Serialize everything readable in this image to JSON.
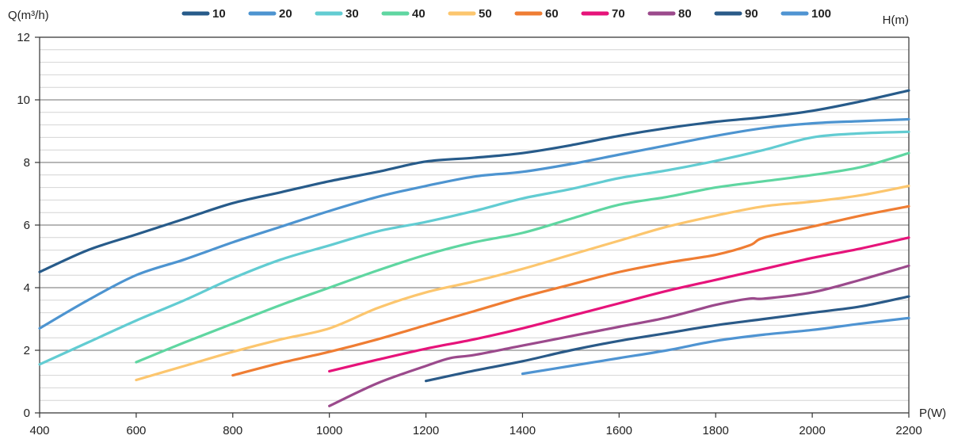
{
  "chart_data": {
    "type": "line",
    "ylabel": "Q(m³/h)",
    "xlabel": "P(W)",
    "right_label": "H(m)",
    "xlim": [
      400,
      2200
    ],
    "ylim": [
      0,
      12
    ],
    "x_ticks": [
      "400",
      "600",
      "800",
      "1000",
      "1200",
      "1400",
      "1600",
      "1800",
      "2000",
      "2200"
    ],
    "y_ticks": [
      "0",
      "2",
      "4",
      "6",
      "8",
      "10",
      "12"
    ],
    "grid": true,
    "legend_position": "top",
    "series": [
      {
        "name": "10",
        "color": "#275b8a",
        "points": [
          [
            400,
            4.5
          ],
          [
            500,
            5.2
          ],
          [
            600,
            5.7
          ],
          [
            700,
            6.2
          ],
          [
            800,
            6.7
          ],
          [
            900,
            7.05
          ],
          [
            1000,
            7.4
          ],
          [
            1100,
            7.7
          ],
          [
            1200,
            8.03
          ],
          [
            1300,
            8.15
          ],
          [
            1400,
            8.3
          ],
          [
            1500,
            8.55
          ],
          [
            1600,
            8.85
          ],
          [
            1700,
            9.1
          ],
          [
            1800,
            9.3
          ],
          [
            1900,
            9.45
          ],
          [
            2000,
            9.65
          ],
          [
            2100,
            9.95
          ],
          [
            2200,
            10.3
          ]
        ]
      },
      {
        "name": "20",
        "color": "#4d94d0",
        "points": [
          [
            400,
            2.7
          ],
          [
            500,
            3.6
          ],
          [
            600,
            4.4
          ],
          [
            700,
            4.9
          ],
          [
            800,
            5.45
          ],
          [
            900,
            5.95
          ],
          [
            1000,
            6.45
          ],
          [
            1100,
            6.9
          ],
          [
            1200,
            7.25
          ],
          [
            1300,
            7.55
          ],
          [
            1400,
            7.7
          ],
          [
            1500,
            7.95
          ],
          [
            1600,
            8.25
          ],
          [
            1700,
            8.55
          ],
          [
            1800,
            8.85
          ],
          [
            1900,
            9.1
          ],
          [
            2000,
            9.25
          ],
          [
            2100,
            9.32
          ],
          [
            2200,
            9.38
          ]
        ]
      },
      {
        "name": "30",
        "color": "#62ccd2",
        "points": [
          [
            400,
            1.55
          ],
          [
            500,
            2.25
          ],
          [
            600,
            2.95
          ],
          [
            700,
            3.6
          ],
          [
            800,
            4.3
          ],
          [
            900,
            4.9
          ],
          [
            1000,
            5.35
          ],
          [
            1100,
            5.8
          ],
          [
            1200,
            6.1
          ],
          [
            1300,
            6.45
          ],
          [
            1400,
            6.85
          ],
          [
            1500,
            7.15
          ],
          [
            1600,
            7.5
          ],
          [
            1700,
            7.75
          ],
          [
            1800,
            8.05
          ],
          [
            1900,
            8.4
          ],
          [
            2000,
            8.8
          ],
          [
            2100,
            8.93
          ],
          [
            2200,
            8.98
          ]
        ]
      },
      {
        "name": "40",
        "color": "#5fd6a1",
        "points": [
          [
            600,
            1.62
          ],
          [
            700,
            2.25
          ],
          [
            800,
            2.85
          ],
          [
            900,
            3.45
          ],
          [
            1000,
            4.0
          ],
          [
            1100,
            4.55
          ],
          [
            1200,
            5.05
          ],
          [
            1300,
            5.45
          ],
          [
            1400,
            5.75
          ],
          [
            1500,
            6.2
          ],
          [
            1600,
            6.65
          ],
          [
            1700,
            6.9
          ],
          [
            1800,
            7.2
          ],
          [
            1900,
            7.4
          ],
          [
            2000,
            7.6
          ],
          [
            2100,
            7.85
          ],
          [
            2200,
            8.3
          ]
        ]
      },
      {
        "name": "50",
        "color": "#fcc66e",
        "points": [
          [
            600,
            1.05
          ],
          [
            700,
            1.5
          ],
          [
            800,
            1.95
          ],
          [
            900,
            2.35
          ],
          [
            1000,
            2.7
          ],
          [
            1100,
            3.35
          ],
          [
            1200,
            3.85
          ],
          [
            1300,
            4.2
          ],
          [
            1400,
            4.6
          ],
          [
            1500,
            5.05
          ],
          [
            1600,
            5.5
          ],
          [
            1700,
            5.95
          ],
          [
            1800,
            6.3
          ],
          [
            1900,
            6.6
          ],
          [
            2000,
            6.75
          ],
          [
            2100,
            6.95
          ],
          [
            2200,
            7.25
          ]
        ]
      },
      {
        "name": "60",
        "color": "#ef7d33",
        "points": [
          [
            800,
            1.2
          ],
          [
            900,
            1.6
          ],
          [
            1000,
            1.95
          ],
          [
            1100,
            2.35
          ],
          [
            1200,
            2.8
          ],
          [
            1300,
            3.25
          ],
          [
            1400,
            3.7
          ],
          [
            1500,
            4.1
          ],
          [
            1600,
            4.5
          ],
          [
            1700,
            4.8
          ],
          [
            1800,
            5.05
          ],
          [
            1870,
            5.35
          ],
          [
            1900,
            5.6
          ],
          [
            2000,
            5.95
          ],
          [
            2100,
            6.3
          ],
          [
            2200,
            6.6
          ]
        ]
      },
      {
        "name": "70",
        "color": "#e6137a",
        "points": [
          [
            1000,
            1.33
          ],
          [
            1100,
            1.7
          ],
          [
            1200,
            2.05
          ],
          [
            1300,
            2.35
          ],
          [
            1400,
            2.7
          ],
          [
            1500,
            3.1
          ],
          [
            1600,
            3.5
          ],
          [
            1700,
            3.9
          ],
          [
            1800,
            4.25
          ],
          [
            1900,
            4.6
          ],
          [
            2000,
            4.95
          ],
          [
            2100,
            5.25
          ],
          [
            2200,
            5.6
          ]
        ]
      },
      {
        "name": "80",
        "color": "#9b4a8c",
        "points": [
          [
            1000,
            0.22
          ],
          [
            1100,
            0.95
          ],
          [
            1200,
            1.5
          ],
          [
            1250,
            1.75
          ],
          [
            1300,
            1.85
          ],
          [
            1400,
            2.15
          ],
          [
            1500,
            2.45
          ],
          [
            1600,
            2.75
          ],
          [
            1700,
            3.05
          ],
          [
            1800,
            3.45
          ],
          [
            1870,
            3.65
          ],
          [
            1900,
            3.65
          ],
          [
            2000,
            3.85
          ],
          [
            2100,
            4.25
          ],
          [
            2200,
            4.7
          ]
        ]
      },
      {
        "name": "90",
        "color": "#2a5a88",
        "points": [
          [
            1200,
            1.02
          ],
          [
            1300,
            1.35
          ],
          [
            1400,
            1.65
          ],
          [
            1500,
            2.0
          ],
          [
            1600,
            2.3
          ],
          [
            1700,
            2.55
          ],
          [
            1800,
            2.8
          ],
          [
            1900,
            3.0
          ],
          [
            2000,
            3.2
          ],
          [
            2100,
            3.4
          ],
          [
            2200,
            3.72
          ]
        ]
      },
      {
        "name": "100",
        "color": "#4f94d2",
        "points": [
          [
            1400,
            1.25
          ],
          [
            1500,
            1.5
          ],
          [
            1600,
            1.75
          ],
          [
            1700,
            2.0
          ],
          [
            1800,
            2.3
          ],
          [
            1900,
            2.5
          ],
          [
            2000,
            2.65
          ],
          [
            2100,
            2.85
          ],
          [
            2200,
            3.03
          ]
        ]
      }
    ]
  }
}
